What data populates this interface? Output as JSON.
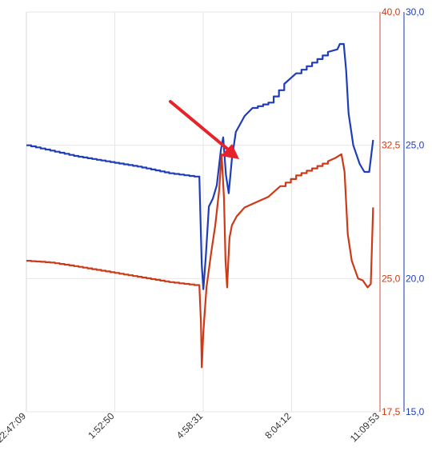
{
  "chart_data": {
    "type": "line",
    "x_ticks": [
      "22:47:09",
      "1:52:50",
      "4:58:31",
      "8:04:12",
      "11:09:53"
    ],
    "x_range_seconds": [
      0,
      44564
    ],
    "grid": true,
    "axes": [
      {
        "side": "right-inner",
        "color": "#cc3a17",
        "ylim": [
          17.5,
          40.0
        ],
        "ticks": [
          "17,5",
          "25,0",
          "32,5",
          "40,0"
        ]
      },
      {
        "side": "right-outer",
        "color": "#1f3db8",
        "ylim": [
          15.0,
          30.0
        ],
        "ticks": [
          "15,0",
          "20,0",
          "25,0",
          "30,0"
        ]
      }
    ],
    "series": [
      {
        "axis": 1,
        "color": "#1f3db8",
        "points": [
          [
            0,
            25.0
          ],
          [
            3000,
            24.8
          ],
          [
            6000,
            24.6
          ],
          [
            10000,
            24.4
          ],
          [
            14000,
            24.2
          ],
          [
            18000,
            23.95
          ],
          [
            21800,
            23.8
          ],
          [
            22100,
            20.5
          ],
          [
            22300,
            19.6
          ],
          [
            22600,
            20.8
          ],
          [
            23000,
            22.7
          ],
          [
            23500,
            23.0
          ],
          [
            24000,
            23.5
          ],
          [
            24500,
            24.8
          ],
          [
            24800,
            25.3
          ],
          [
            25150,
            23.9
          ],
          [
            25500,
            23.2
          ],
          [
            25900,
            24.5
          ],
          [
            26400,
            25.5
          ],
          [
            27500,
            26.1
          ],
          [
            28500,
            26.4
          ],
          [
            30500,
            26.6
          ],
          [
            32500,
            27.3
          ],
          [
            34000,
            27.7
          ],
          [
            36000,
            28.1
          ],
          [
            38000,
            28.5
          ],
          [
            39200,
            28.6
          ],
          [
            39500,
            28.8
          ],
          [
            40000,
            28.8
          ],
          [
            40300,
            27.8
          ],
          [
            40600,
            26.2
          ],
          [
            41200,
            25.0
          ],
          [
            42000,
            24.3
          ],
          [
            42600,
            24.0
          ],
          [
            43200,
            24.0
          ],
          [
            43700,
            25.2
          ]
        ]
      },
      {
        "axis": 0,
        "color": "#cc3a17",
        "points": [
          [
            0,
            26.0
          ],
          [
            3000,
            25.9
          ],
          [
            6000,
            25.7
          ],
          [
            10000,
            25.4
          ],
          [
            14000,
            25.1
          ],
          [
            18000,
            24.8
          ],
          [
            21800,
            24.6
          ],
          [
            22000,
            22.5
          ],
          [
            22100,
            20.0
          ],
          [
            22300,
            22.0
          ],
          [
            22700,
            24.5
          ],
          [
            23300,
            26.5
          ],
          [
            23800,
            28.0
          ],
          [
            24300,
            30.0
          ],
          [
            24600,
            32.0
          ],
          [
            24900,
            29.5
          ],
          [
            25100,
            26.0
          ],
          [
            25300,
            24.5
          ],
          [
            25450,
            26.0
          ],
          [
            25600,
            27.3
          ],
          [
            25900,
            28.0
          ],
          [
            26500,
            28.5
          ],
          [
            27500,
            29.0
          ],
          [
            29000,
            29.3
          ],
          [
            30500,
            29.6
          ],
          [
            32000,
            30.2
          ],
          [
            34000,
            30.8
          ],
          [
            36000,
            31.2
          ],
          [
            38000,
            31.6
          ],
          [
            39000,
            31.8
          ],
          [
            39700,
            32.0
          ],
          [
            40100,
            31.0
          ],
          [
            40500,
            27.5
          ],
          [
            41000,
            26.0
          ],
          [
            41800,
            25.0
          ],
          [
            42400,
            24.9
          ],
          [
            43000,
            24.5
          ],
          [
            43400,
            24.7
          ],
          [
            43700,
            29.0
          ]
        ]
      }
    ]
  }
}
